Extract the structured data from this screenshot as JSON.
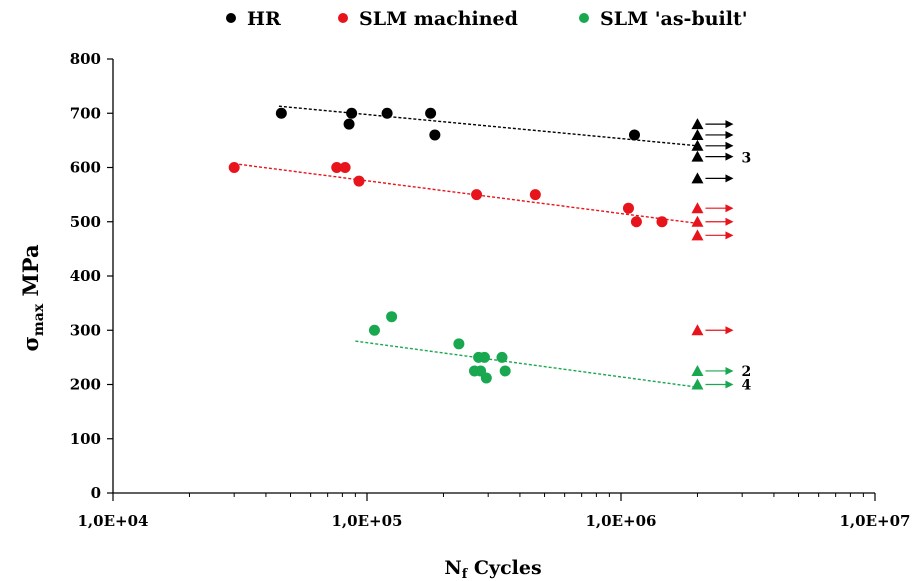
{
  "chart_data": {
    "type": "scatter",
    "title": "",
    "xlabel": {
      "main": "N",
      "sub": "f",
      "rest": " Cycles"
    },
    "ylabel": {
      "main": "σ",
      "sub": "max",
      "rest": " MPa"
    },
    "x_scale": "log",
    "xlim": [
      10000,
      10000000
    ],
    "ylim": [
      0,
      800
    ],
    "x_ticks": [
      10000,
      100000,
      1000000,
      10000000
    ],
    "x_tick_labels": [
      "1,0E+04",
      "1,0E+05",
      "1,0E+06",
      "1,0E+07"
    ],
    "y_ticks": [
      0,
      100,
      200,
      300,
      400,
      500,
      600,
      700,
      800
    ],
    "y_tick_labels": [
      "0",
      "100",
      "200",
      "300",
      "400",
      "500",
      "600",
      "700",
      "800"
    ],
    "grid": false,
    "legend_position": "top",
    "series": [
      {
        "name": "HR",
        "color": "#000000",
        "points": [
          [
            46000,
            700
          ],
          [
            85000,
            680
          ],
          [
            87000,
            700
          ],
          [
            120000,
            700
          ],
          [
            178000,
            700
          ],
          [
            185000,
            660
          ],
          [
            1130000,
            660
          ]
        ],
        "runouts": [
          2000000,
          [
            580,
            620,
            640,
            660,
            680
          ]
        ],
        "trend": [
          [
            45000,
            713
          ],
          [
            2000000,
            640
          ]
        ]
      },
      {
        "name": "SLM machined",
        "color": "#e8141c",
        "points": [
          [
            30000,
            600
          ],
          [
            76000,
            600
          ],
          [
            82000,
            600
          ],
          [
            93000,
            575
          ],
          [
            270000,
            550
          ],
          [
            460000,
            550
          ],
          [
            1070000,
            525
          ],
          [
            1150000,
            500
          ],
          [
            1450000,
            500
          ]
        ],
        "runouts": [
          2000000,
          [
            475,
            500,
            525,
            300
          ]
        ],
        "trend": [
          [
            30000,
            607
          ],
          [
            2000000,
            497
          ]
        ]
      },
      {
        "name": "SLM 'as-built'",
        "color": "#19a84f",
        "points": [
          [
            107000,
            300
          ],
          [
            125000,
            325
          ],
          [
            230000,
            275
          ],
          [
            265000,
            225
          ],
          [
            275000,
            250
          ],
          [
            280000,
            225
          ],
          [
            290000,
            250
          ],
          [
            295000,
            212
          ],
          [
            340000,
            250
          ],
          [
            350000,
            225
          ]
        ],
        "runouts": [
          2000000,
          [
            225,
            200
          ]
        ],
        "trend": [
          [
            90000,
            280
          ],
          [
            2000000,
            195
          ]
        ]
      }
    ],
    "annotations": [
      {
        "text": "3",
        "x": 2000000,
        "y": 618
      },
      {
        "text": "2",
        "x": 2000000,
        "y": 225
      },
      {
        "text": "4",
        "x": 2000000,
        "y": 200
      }
    ]
  }
}
